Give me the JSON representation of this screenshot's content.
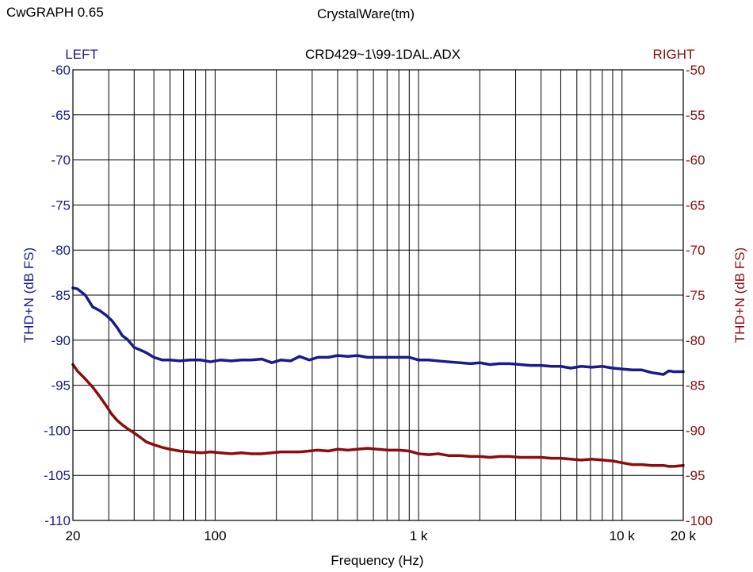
{
  "header": {
    "app_name": "CwGRAPH  0.65",
    "vendor": "CrystalWare(tm)"
  },
  "colors": {
    "left": "#1a1a8c",
    "right": "#8b0d0d",
    "grid": "#000000"
  },
  "chart_data": {
    "type": "line",
    "title": "CRD429~1\\99-1DAL.ADX",
    "xlabel": "Frequency (Hz)",
    "xscale": "log",
    "xlim": [
      20,
      20000
    ],
    "x_ticks": [
      {
        "value": 20,
        "label": "20"
      },
      {
        "value": 100,
        "label": "100"
      },
      {
        "value": 1000,
        "label": "1 k"
      },
      {
        "value": 10000,
        "label": "10 k"
      },
      {
        "value": 20000,
        "label": "20 k"
      }
    ],
    "left_axis": {
      "header": "LEFT",
      "label": "THD+N (dB FS)",
      "ylim": [
        -110,
        -60
      ],
      "ticks": [
        -60,
        -65,
        -70,
        -75,
        -80,
        -85,
        -90,
        -95,
        -100,
        -105,
        -110
      ]
    },
    "right_axis": {
      "header": "RIGHT",
      "label": "THD+N (dB FS)",
      "ylim": [
        -100,
        -50
      ],
      "ticks": [
        -50,
        -55,
        -60,
        -65,
        -70,
        -75,
        -80,
        -85,
        -90,
        -95,
        -100
      ]
    },
    "grid": true,
    "series": [
      {
        "name": "LEFT",
        "axis": "left",
        "x": [
          20,
          21,
          23,
          25,
          27,
          29,
          31,
          33,
          35,
          37,
          40,
          43,
          46,
          50,
          55,
          60,
          67,
          75,
          85,
          95,
          106,
          120,
          135,
          150,
          170,
          190,
          210,
          235,
          260,
          290,
          320,
          360,
          400,
          450,
          500,
          560,
          630,
          710,
          800,
          900,
          1000,
          1120,
          1250,
          1400,
          1600,
          1800,
          2000,
          2240,
          2500,
          2800,
          3150,
          3550,
          4000,
          4500,
          5000,
          5600,
          6300,
          7100,
          8000,
          9000,
          10000,
          11200,
          12500,
          14000,
          16000,
          17000,
          18000,
          20000
        ],
        "y": [
          -84.2,
          -84.3,
          -85.0,
          -86.3,
          -86.7,
          -87.2,
          -87.8,
          -88.6,
          -89.5,
          -89.9,
          -90.8,
          -91.1,
          -91.4,
          -91.9,
          -92.2,
          -92.2,
          -92.3,
          -92.2,
          -92.2,
          -92.4,
          -92.2,
          -92.3,
          -92.2,
          -92.2,
          -92.1,
          -92.5,
          -92.2,
          -92.3,
          -91.8,
          -92.2,
          -91.9,
          -91.9,
          -91.7,
          -91.8,
          -91.7,
          -91.9,
          -91.9,
          -91.9,
          -91.9,
          -91.9,
          -92.2,
          -92.2,
          -92.3,
          -92.4,
          -92.5,
          -92.6,
          -92.5,
          -92.7,
          -92.6,
          -92.6,
          -92.7,
          -92.8,
          -92.8,
          -92.9,
          -92.9,
          -93.1,
          -92.9,
          -93.0,
          -92.9,
          -93.1,
          -93.2,
          -93.3,
          -93.3,
          -93.6,
          -93.8,
          -93.4,
          -93.5,
          -93.5
        ]
      },
      {
        "name": "RIGHT",
        "axis": "right",
        "x": [
          20,
          21,
          23,
          25,
          27,
          29,
          31,
          33,
          35,
          37,
          40,
          43,
          46,
          50,
          55,
          60,
          67,
          75,
          85,
          95,
          106,
          120,
          135,
          150,
          170,
          190,
          210,
          235,
          260,
          290,
          320,
          360,
          400,
          450,
          500,
          560,
          630,
          710,
          800,
          900,
          1000,
          1120,
          1250,
          1400,
          1600,
          1800,
          2000,
          2240,
          2500,
          2800,
          3150,
          3550,
          4000,
          4500,
          5000,
          5600,
          6300,
          7100,
          8000,
          9000,
          10000,
          11200,
          12500,
          14000,
          16000,
          17000,
          18000,
          20000
        ],
        "y": [
          -82.7,
          -83.4,
          -84.3,
          -85.2,
          -86.2,
          -87.2,
          -88.2,
          -88.9,
          -89.4,
          -89.8,
          -90.3,
          -90.8,
          -91.3,
          -91.6,
          -91.9,
          -92.1,
          -92.3,
          -92.4,
          -92.5,
          -92.4,
          -92.5,
          -92.6,
          -92.5,
          -92.6,
          -92.6,
          -92.5,
          -92.4,
          -92.4,
          -92.4,
          -92.3,
          -92.2,
          -92.3,
          -92.1,
          -92.2,
          -92.1,
          -92.0,
          -92.1,
          -92.2,
          -92.2,
          -92.3,
          -92.6,
          -92.7,
          -92.6,
          -92.8,
          -92.8,
          -92.9,
          -92.9,
          -93.0,
          -92.9,
          -92.9,
          -93.0,
          -93.0,
          -93.0,
          -93.1,
          -93.1,
          -93.2,
          -93.3,
          -93.2,
          -93.3,
          -93.4,
          -93.6,
          -93.8,
          -93.8,
          -93.9,
          -93.9,
          -94.0,
          -94.0,
          -93.9
        ]
      }
    ]
  }
}
